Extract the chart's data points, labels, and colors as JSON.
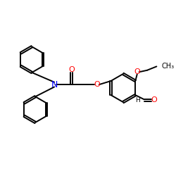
{
  "background": "#ffffff",
  "bond_color": "#000000",
  "bond_lw": 1.4,
  "atom_colors": {
    "O": "#ff0000",
    "N": "#0000ff",
    "C": "#000000"
  },
  "font_size": 8,
  "font_size_small": 7
}
